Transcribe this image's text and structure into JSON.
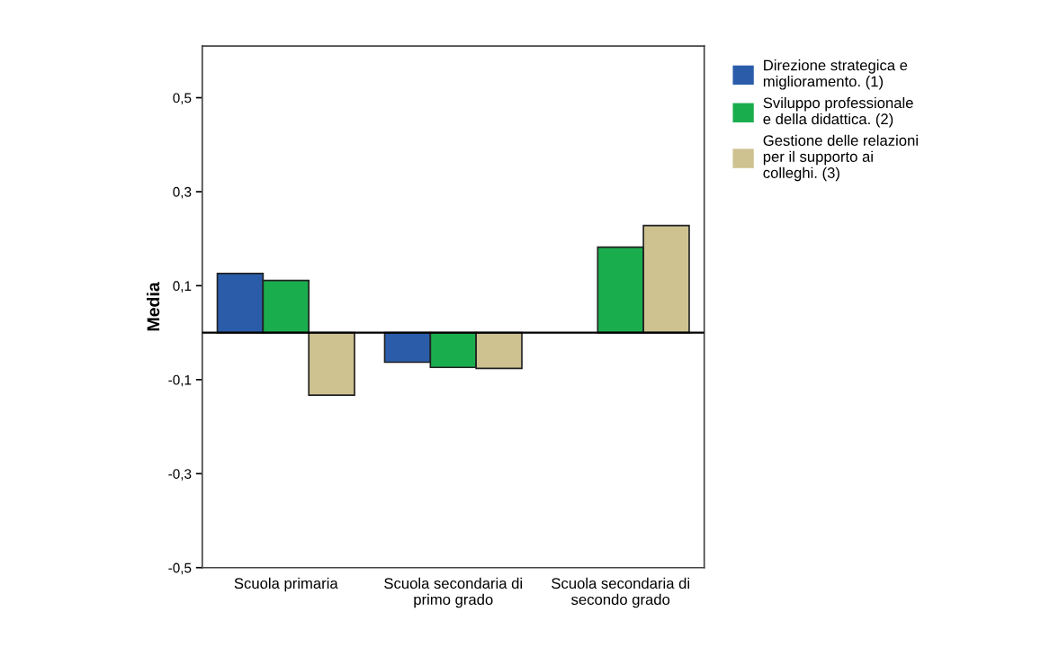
{
  "chart_data": {
    "type": "bar",
    "ylabel": "Media",
    "categories": [
      "Scuola primaria",
      "Scuola secondaria di\nprimo grado",
      "Scuola secondaria di\nsecondo grado"
    ],
    "series": [
      {
        "name": "Direzione strategica e\nmiglioramento. (1)",
        "color": "#2a5caa",
        "values": [
          0.126,
          -0.063,
          null
        ]
      },
      {
        "name": "Sviluppo professionale\ne della didattica. (2)",
        "color": "#1aad4e",
        "values": [
          0.111,
          -0.074,
          0.182
        ]
      },
      {
        "name": "Gestione delle relazioni\nper il supporto ai\ncolleghi. (3)",
        "color": "#cdc290",
        "values": [
          -0.133,
          -0.076,
          0.228
        ]
      }
    ],
    "ylim": [
      -0.5,
      0.61
    ],
    "yticks": [
      {
        "value": -0.5,
        "label": "-0,5"
      },
      {
        "value": -0.3,
        "label": "-0,3"
      },
      {
        "value": -0.1,
        "label": "-0,1"
      },
      {
        "value": 0.1,
        "label": "0,1"
      },
      {
        "value": 0.3,
        "label": "0,3"
      },
      {
        "value": 0.5,
        "label": "0,5"
      }
    ],
    "ref_lines": [
      {
        "axis": "y",
        "value": 0,
        "color": "#000000"
      }
    ],
    "grid": false,
    "legend": "top right"
  }
}
